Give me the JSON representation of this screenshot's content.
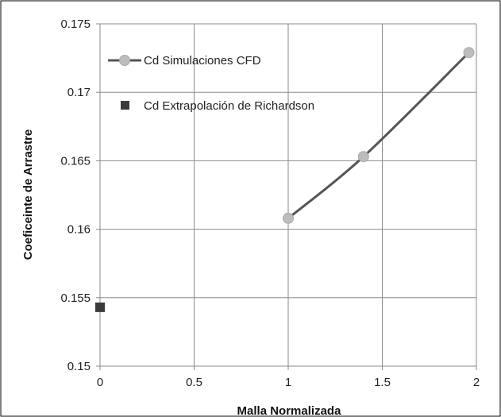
{
  "colors": {
    "grid": "#8a8a8a",
    "axis": "#8a8a8a",
    "cfd_line": "#555555",
    "cfd_marker": "#bdbdbd",
    "richardson_marker": "#3b3b3b",
    "frame": "#000000"
  },
  "chart_data": {
    "type": "scatter",
    "xlabel": "Malla Normalizada",
    "ylabel": "Coeficeinte de Arrastre",
    "xlim": [
      0,
      2
    ],
    "ylim": [
      0.15,
      0.175
    ],
    "xticks": [
      0,
      0.5,
      1,
      1.5,
      2
    ],
    "yticks": [
      0.15,
      0.155,
      0.16,
      0.165,
      0.17,
      0.175
    ],
    "xtick_labels": [
      "0",
      "0.5",
      "1",
      "1.5",
      "2"
    ],
    "ytick_labels": [
      "0.15",
      "0.155",
      "0.16",
      "0.165",
      "0.17",
      "0.175"
    ],
    "grid": true,
    "legend_position": "top-left",
    "series": [
      {
        "name": "Cd Simulaciones CFD",
        "style": "line-with-circle-markers",
        "x": [
          1,
          1.4,
          1.96
        ],
        "y": [
          0.1608,
          0.1653,
          0.1729
        ]
      },
      {
        "name": "Cd Extrapolación de Richardson",
        "style": "square-marker",
        "x": [
          0
        ],
        "y": [
          0.1543
        ]
      }
    ]
  }
}
